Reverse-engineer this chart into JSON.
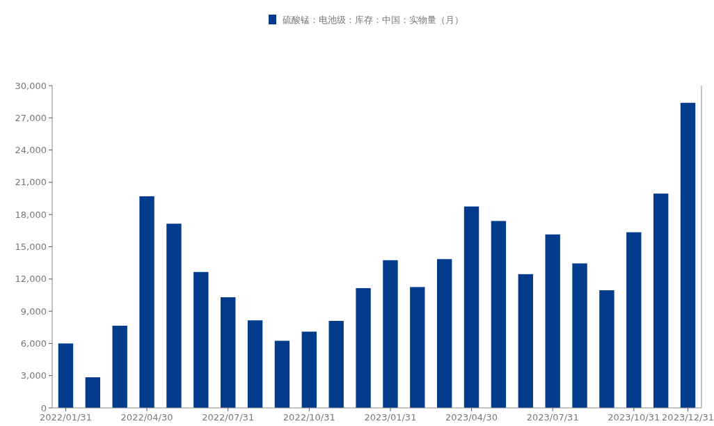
{
  "chart_data": {
    "type": "bar",
    "categories": [
      "2022/01/31",
      null,
      null,
      "2022/04/30",
      null,
      null,
      "2022/07/31",
      null,
      null,
      "2022/10/31",
      null,
      null,
      "2023/01/31",
      null,
      null,
      "2023/04/30",
      null,
      null,
      "2023/07/31",
      null,
      null,
      "2023/10/31",
      null,
      "2023/12/31"
    ],
    "series": [
      {
        "name": "硫酸锰：电池级：库存：中国：实物量（月）",
        "color": "#033b8c",
        "values": [
          6000,
          2850,
          7650,
          19700,
          17150,
          12650,
          10300,
          8150,
          6250,
          7100,
          8100,
          11150,
          13750,
          11250,
          13850,
          18750,
          17400,
          12450,
          16150,
          13450,
          10950,
          16350,
          19950,
          28400
        ]
      }
    ],
    "ylim": [
      0,
      30000
    ],
    "yticks": [
      {
        "value": 0,
        "label": "0"
      },
      {
        "value": 3000,
        "label": "3,000"
      },
      {
        "value": 6000,
        "label": "6,000"
      },
      {
        "value": 9000,
        "label": "9,000"
      },
      {
        "value": 12000,
        "label": "12,000"
      },
      {
        "value": 15000,
        "label": "15,000"
      },
      {
        "value": 18000,
        "label": "18,000"
      },
      {
        "value": 21000,
        "label": "21,000"
      },
      {
        "value": 24000,
        "label": "24,000"
      },
      {
        "value": 27000,
        "label": "27,000"
      },
      {
        "value": 30000,
        "label": "30,000"
      }
    ],
    "grid": false,
    "legend": "top"
  }
}
